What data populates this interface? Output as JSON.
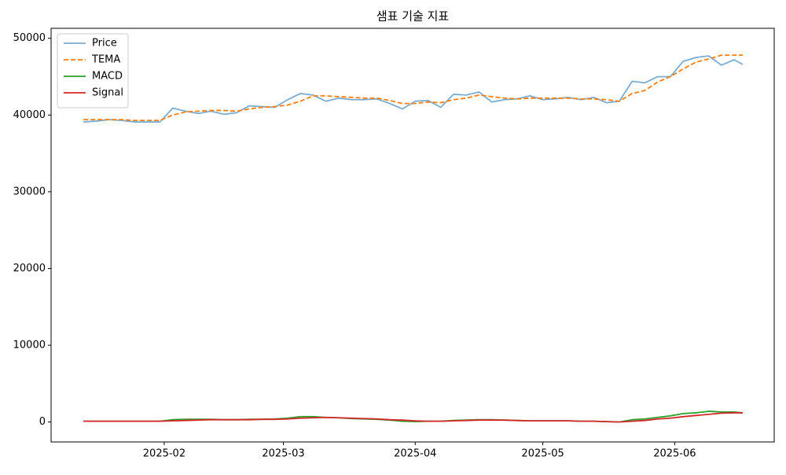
{
  "chart_data": {
    "type": "line",
    "title": "샘표 기술 지표",
    "x": [
      13,
      16,
      19,
      22,
      25,
      28,
      31,
      34,
      37,
      40,
      43,
      46,
      49,
      52,
      55,
      58,
      61,
      64,
      67,
      70,
      73,
      76,
      79,
      82,
      85,
      88,
      91,
      94,
      97,
      100,
      103,
      106,
      109,
      112,
      115,
      118,
      121,
      124,
      127,
      130,
      133,
      136,
      139,
      142,
      145,
      148,
      151,
      154,
      157,
      160,
      163,
      166,
      168
    ],
    "xlim": [
      5.4,
      175.4
    ],
    "xticks": [
      {
        "value": 32,
        "label": "2025-02"
      },
      {
        "value": 60,
        "label": "2025-03"
      },
      {
        "value": 91,
        "label": "2025-04"
      },
      {
        "value": 121,
        "label": "2025-05"
      },
      {
        "value": 152,
        "label": "2025-06"
      }
    ],
    "ylim": [
      -2600,
      51300
    ],
    "yticks": [
      0,
      10000,
      20000,
      30000,
      40000,
      50000
    ],
    "grid": false,
    "legend": "upper-left",
    "series": [
      {
        "name": "Price",
        "color": "#7badd3",
        "linestyle": "solid",
        "values": [
          39100,
          39200,
          39400,
          39300,
          39100,
          39100,
          39100,
          40900,
          40500,
          40200,
          40500,
          40100,
          40300,
          41200,
          41100,
          41000,
          42000,
          42800,
          42600,
          41800,
          42200,
          42000,
          42000,
          42100,
          41500,
          40800,
          41800,
          41900,
          41000,
          42700,
          42600,
          43000,
          41700,
          42000,
          42100,
          42500,
          42000,
          42100,
          42300,
          42000,
          42300,
          41600,
          41800,
          44400,
          44200,
          45000,
          45000,
          47000,
          47500,
          47700,
          46500,
          47200,
          46600
        ]
      },
      {
        "name": "TEMA",
        "color": "#ff7f0e",
        "linestyle": "dashed",
        "values": [
          39400,
          39400,
          39400,
          39400,
          39300,
          39300,
          39300,
          40000,
          40400,
          40500,
          40600,
          40600,
          40500,
          40800,
          41000,
          41100,
          41300,
          41800,
          42500,
          42500,
          42400,
          42300,
          42200,
          42200,
          41900,
          41500,
          41500,
          41700,
          41600,
          42000,
          42200,
          42600,
          42400,
          42200,
          42100,
          42200,
          42200,
          42200,
          42200,
          42100,
          42100,
          42000,
          41800,
          42800,
          43200,
          44300,
          45000,
          46000,
          46900,
          47300,
          47800,
          47800,
          47800
        ]
      },
      {
        "name": "MACD",
        "color": "#2ca02c",
        "linestyle": "solid",
        "values": [
          100,
          100,
          100,
          100,
          100,
          100,
          100,
          300,
          350,
          350,
          350,
          300,
          300,
          350,
          350,
          400,
          500,
          700,
          700,
          600,
          550,
          450,
          400,
          350,
          250,
          100,
          50,
          100,
          100,
          200,
          250,
          300,
          300,
          250,
          200,
          150,
          150,
          150,
          150,
          100,
          100,
          50,
          0,
          300,
          400,
          600,
          800,
          1100,
          1200,
          1400,
          1300,
          1300,
          1200
        ]
      },
      {
        "name": "Signal",
        "color": "#d62728",
        "linestyle": "solid",
        "values": [
          100,
          100,
          100,
          100,
          100,
          100,
          100,
          150,
          200,
          250,
          300,
          300,
          300,
          300,
          350,
          350,
          400,
          500,
          550,
          600,
          550,
          500,
          450,
          400,
          300,
          250,
          150,
          100,
          100,
          150,
          200,
          250,
          250,
          250,
          200,
          150,
          150,
          150,
          150,
          100,
          100,
          50,
          0,
          100,
          200,
          400,
          500,
          700,
          850,
          1000,
          1150,
          1200,
          1200
        ]
      }
    ]
  }
}
